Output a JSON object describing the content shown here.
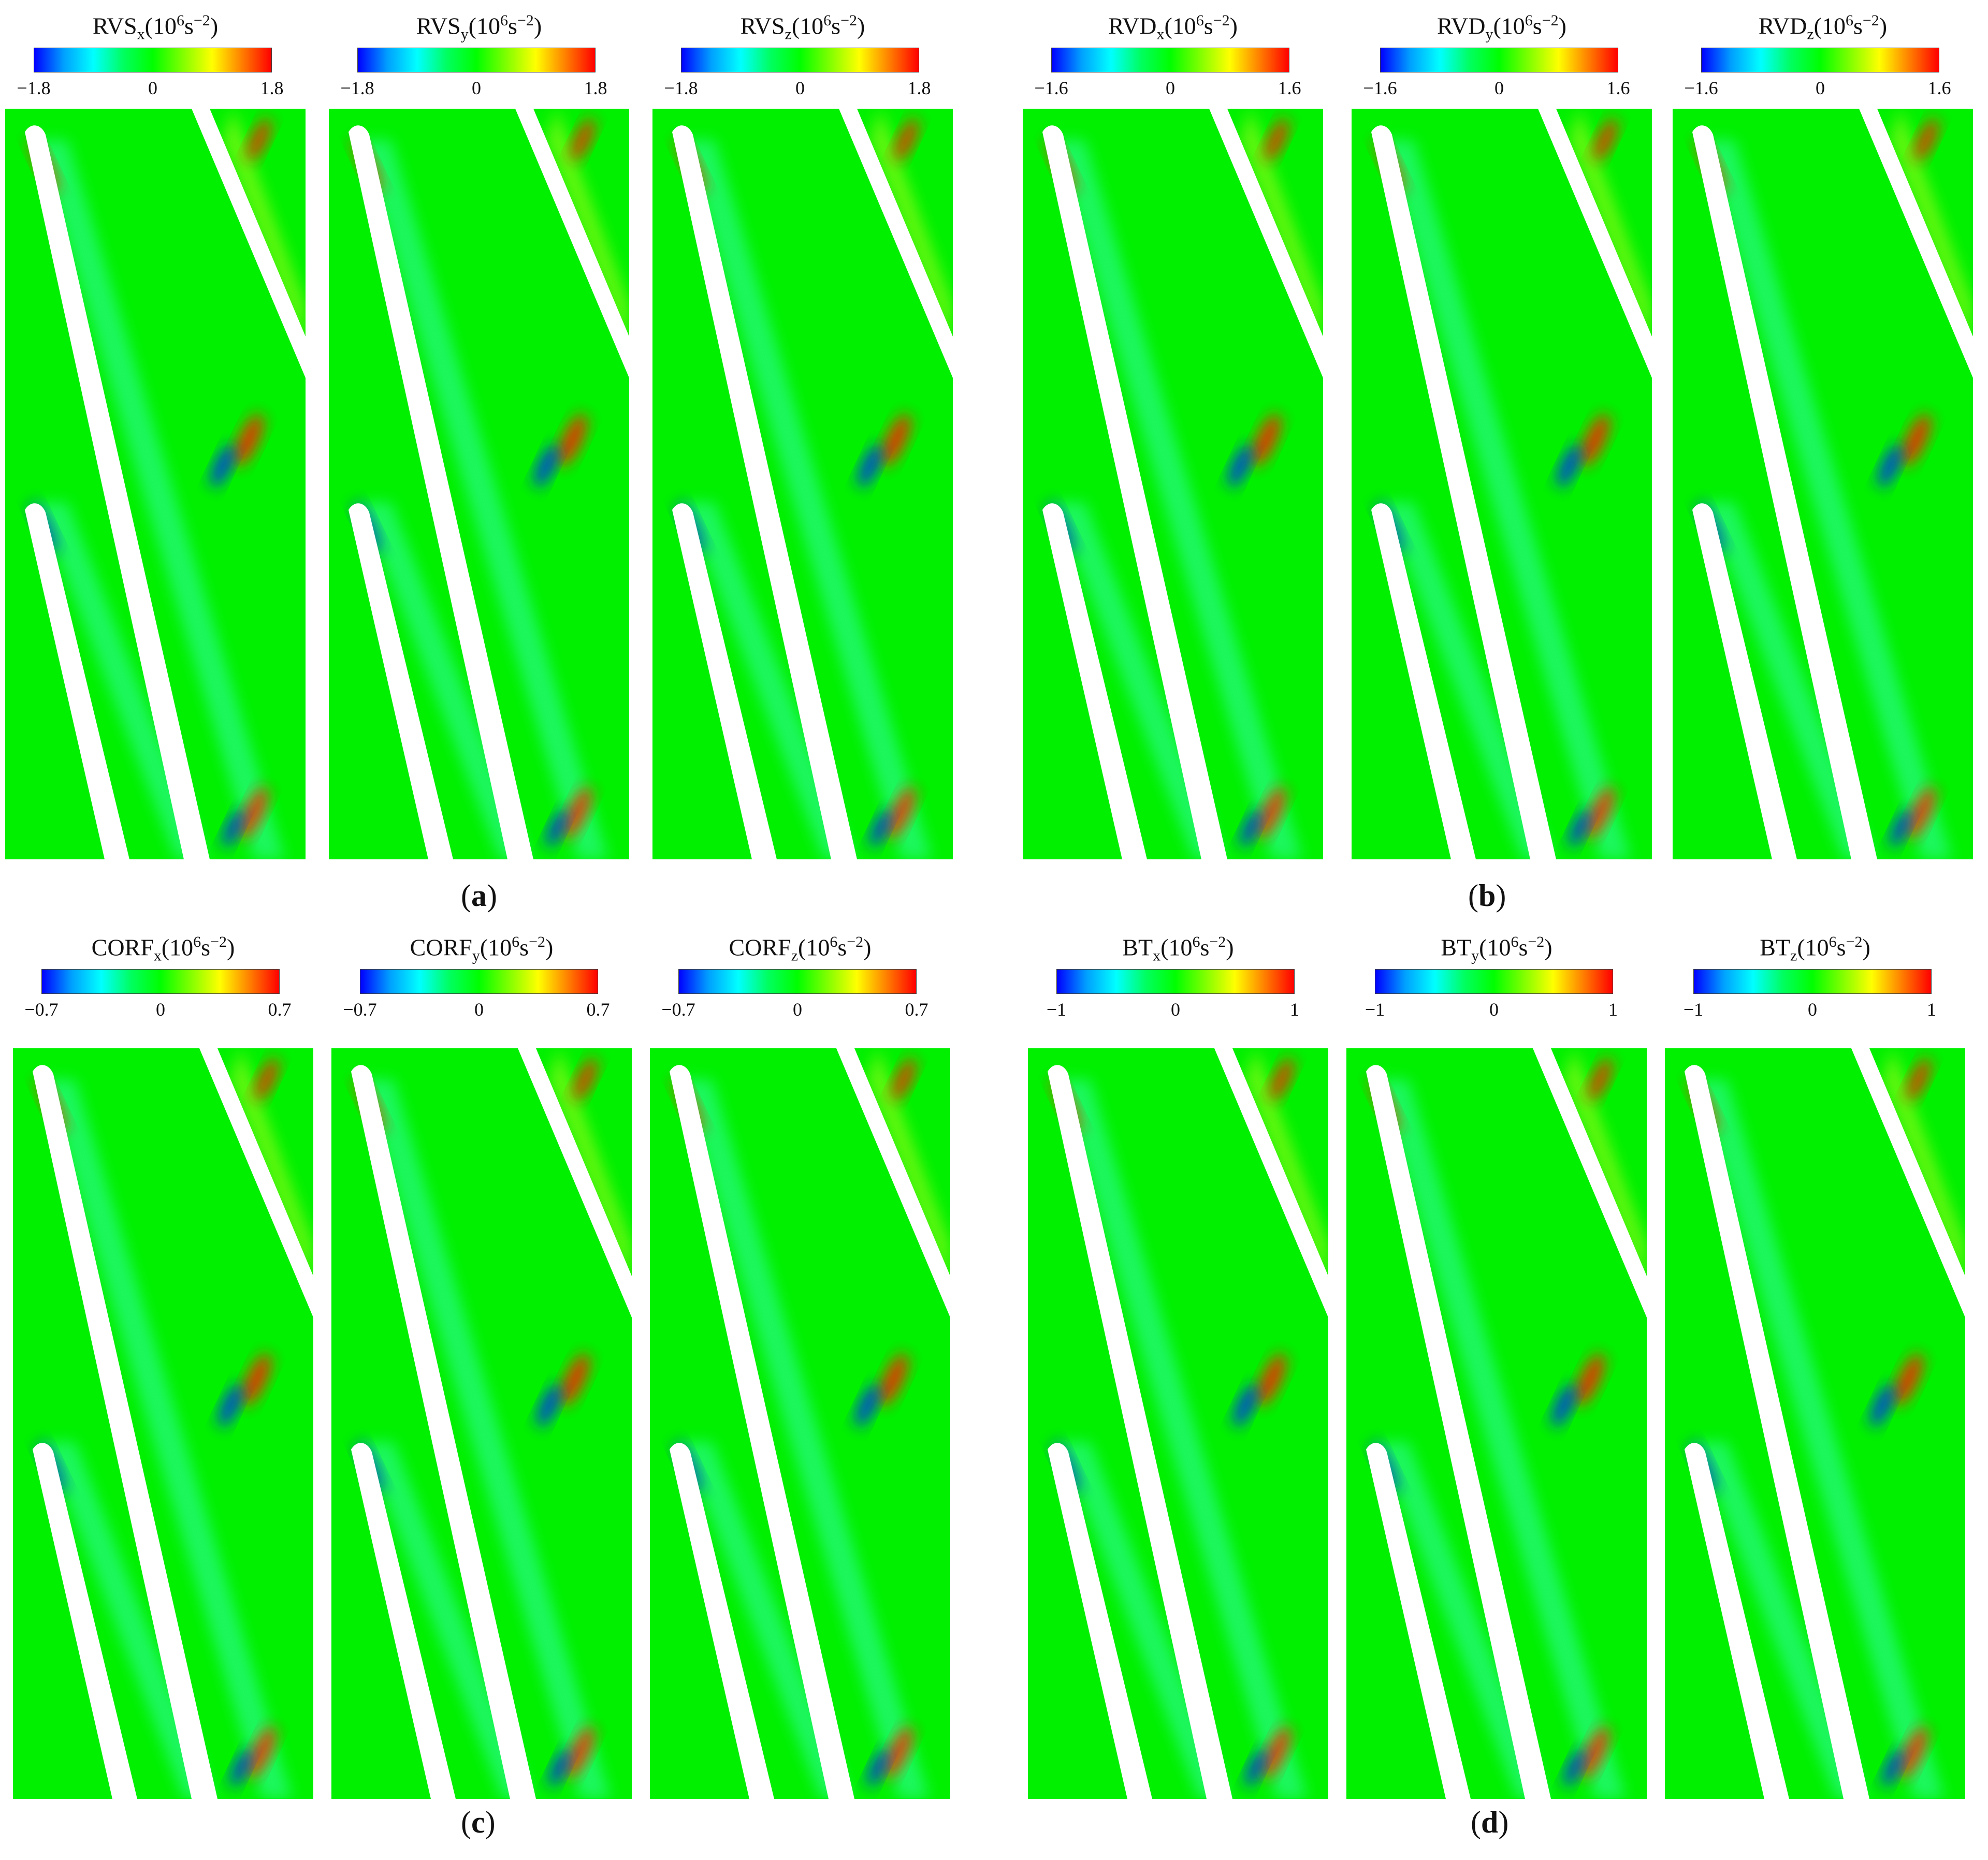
{
  "colormap_colors": [
    "#0000ff",
    "#00a0ff",
    "#00ffff",
    "#00ff60",
    "#00ff00",
    "#7fff00",
    "#ffff00",
    "#ff8000",
    "#ff0000"
  ],
  "field_color": "#00f000",
  "blade_color": "#ffffff",
  "rows": [
    {
      "groups": [
        {
          "caption": {
            "open": "(",
            "letter": "a",
            "close": ")"
          },
          "panels": [
            {
              "title_base": "RVS",
              "title_sub": "x",
              "title_unit": "(10",
              "title_exp": "6",
              "title_unit2": "s",
              "title_exp2": "−2",
              "title_close": ")",
              "min": "−1.8",
              "mid": "0",
              "max": "1.8"
            },
            {
              "title_base": "RVS",
              "title_sub": "y",
              "title_unit": "(10",
              "title_exp": "6",
              "title_unit2": "s",
              "title_exp2": "−2",
              "title_close": ")",
              "min": "−1.8",
              "mid": "0",
              "max": "1.8"
            },
            {
              "title_base": "RVS",
              "title_sub": "z",
              "title_unit": "(10",
              "title_exp": "6",
              "title_unit2": "s",
              "title_exp2": "−2",
              "title_close": ")",
              "min": "−1.8",
              "mid": "0",
              "max": "1.8"
            }
          ]
        },
        {
          "caption": {
            "open": "(",
            "letter": "b",
            "close": ")"
          },
          "panels": [
            {
              "title_base": "RVD",
              "title_sub": "x",
              "title_unit": "(10",
              "title_exp": "6",
              "title_unit2": "s",
              "title_exp2": "−2",
              "title_close": ")",
              "min": "−1.6",
              "mid": "0",
              "max": "1.6"
            },
            {
              "title_base": "RVD",
              "title_sub": "y",
              "title_unit": "(10",
              "title_exp": "6",
              "title_unit2": "s",
              "title_exp2": "−2",
              "title_close": ")",
              "min": "−1.6",
              "mid": "0",
              "max": "1.6"
            },
            {
              "title_base": "RVD",
              "title_sub": "z",
              "title_unit": "(10",
              "title_exp": "6",
              "title_unit2": "s",
              "title_exp2": "−2",
              "title_close": ")",
              "min": "−1.6",
              "mid": "0",
              "max": "1.6"
            }
          ]
        }
      ]
    },
    {
      "groups": [
        {
          "caption": {
            "open": "(",
            "letter": "c",
            "close": ")"
          },
          "panels": [
            {
              "title_base": "CORF",
              "title_sub": "x",
              "title_unit": "(10",
              "title_exp": "6",
              "title_unit2": "s",
              "title_exp2": "−2",
              "title_close": ")",
              "min": "−0.7",
              "mid": "0",
              "max": "0.7"
            },
            {
              "title_base": "CORF",
              "title_sub": "y",
              "title_unit": "(10",
              "title_exp": "6",
              "title_unit2": "s",
              "title_exp2": "−2",
              "title_close": ")",
              "min": "−0.7",
              "mid": "0",
              "max": "0.7"
            },
            {
              "title_base": "CORF",
              "title_sub": "z",
              "title_unit": "(10",
              "title_exp": "6",
              "title_unit2": "s",
              "title_exp2": "−2",
              "title_close": ")",
              "min": "−0.7",
              "mid": "0",
              "max": "0.7"
            }
          ]
        },
        {
          "caption": {
            "open": "(",
            "letter": "d",
            "close": ")"
          },
          "panels": [
            {
              "title_base": "BT",
              "title_sub": "x",
              "title_unit": "(10",
              "title_exp": "6",
              "title_unit2": "s",
              "title_exp2": "−2",
              "title_close": ")",
              "min": "−1",
              "mid": "0",
              "max": "1"
            },
            {
              "title_base": "BT",
              "title_sub": "y",
              "title_unit": "(10",
              "title_exp": "6",
              "title_unit2": "s",
              "title_exp2": "−2",
              "title_close": ")",
              "min": "−1",
              "mid": "0",
              "max": "1"
            },
            {
              "title_base": "BT",
              "title_sub": "z",
              "title_unit": "(10",
              "title_exp": "6",
              "title_unit2": "s",
              "title_exp2": "−2",
              "title_close": ")",
              "min": "−1",
              "mid": "0",
              "max": "1"
            }
          ]
        }
      ]
    }
  ]
}
